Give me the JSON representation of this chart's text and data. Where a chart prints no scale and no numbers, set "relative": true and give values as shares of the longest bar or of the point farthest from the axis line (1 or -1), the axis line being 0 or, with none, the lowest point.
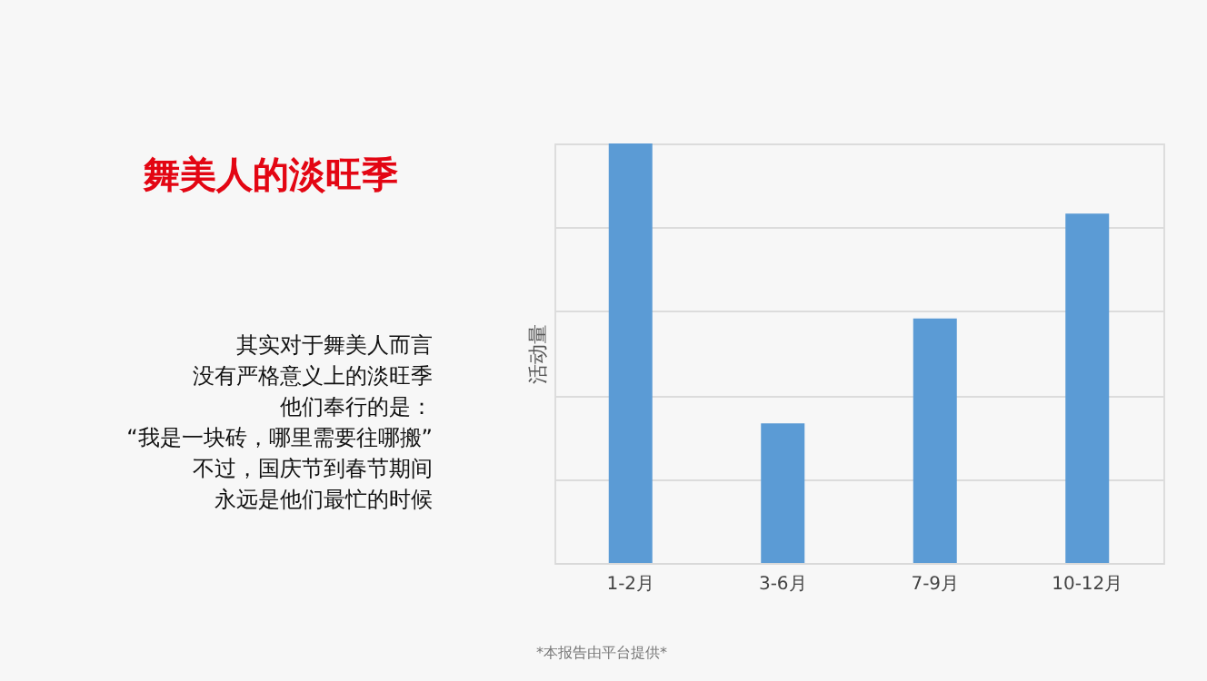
{
  "chart_data": {
    "type": "bar",
    "title": "舞美人的淡旺季",
    "ylabel": "活动量",
    "categories": [
      "1-2月",
      "3-6月",
      "7-9月",
      "10-12月"
    ],
    "values": [
      1,
      0.333,
      0.583,
      0.833
    ],
    "color": "#5b9bd5",
    "relative": true,
    "grid": "y",
    "annotations": [
      "其实对于舞美人而言",
      "没有严格意义上的淡旺季",
      "他们奉行的是：",
      "“我是一块砖，哪里需要往哪搬”",
      "不过，国庆节到春节期间",
      "永远是他们最忙的时候",
      "*本报告由平台提供*"
    ]
  }
}
